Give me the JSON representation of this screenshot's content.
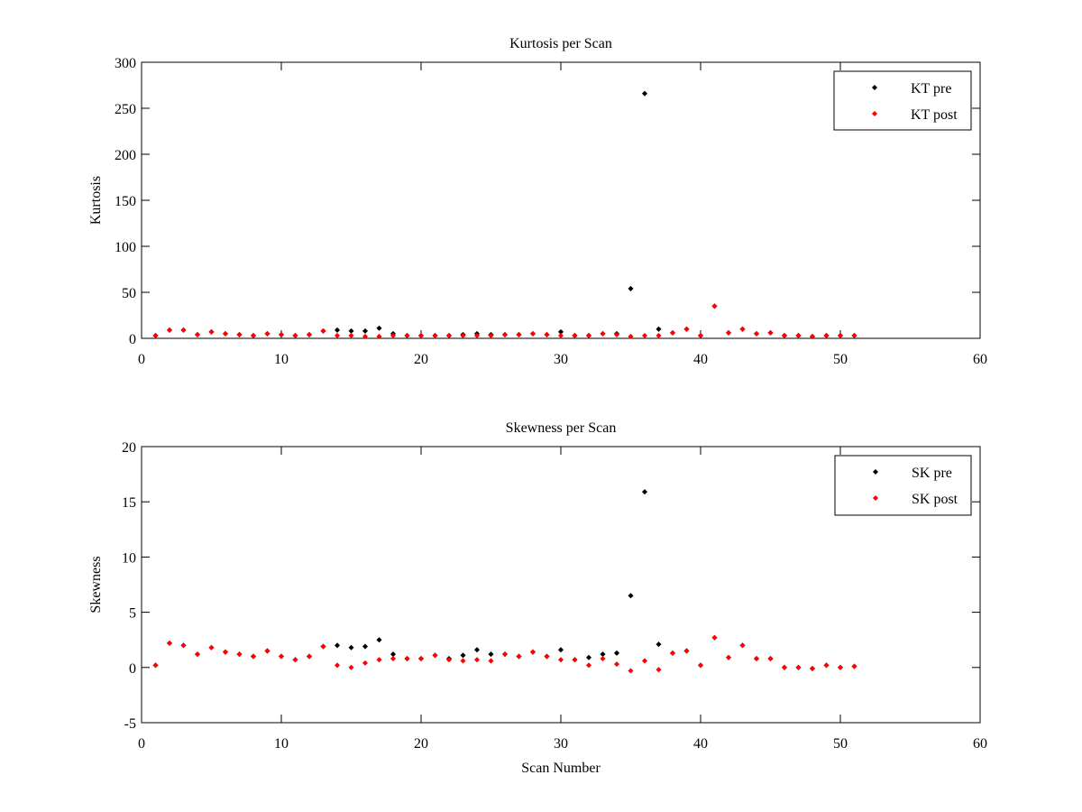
{
  "chart_data": [
    {
      "type": "scatter",
      "title": "Kurtosis per Scan",
      "xlabel": "",
      "ylabel": "Kurtosis",
      "xlim": [
        0,
        60
      ],
      "ylim": [
        0,
        300
      ],
      "xticks": [
        0,
        10,
        20,
        30,
        40,
        50,
        60
      ],
      "yticks": [
        0,
        50,
        100,
        150,
        200,
        250,
        300
      ],
      "grid": false,
      "legend_position": "top-right",
      "series": [
        {
          "name": "KT pre",
          "color": "#000000",
          "x": [
            1,
            2,
            3,
            4,
            5,
            6,
            7,
            8,
            9,
            10,
            11,
            12,
            13,
            14,
            15,
            16,
            17,
            18,
            19,
            20,
            21,
            22,
            23,
            24,
            25,
            26,
            27,
            28,
            29,
            30,
            31,
            32,
            33,
            34,
            35,
            36,
            37,
            38,
            39,
            40,
            41,
            42,
            43,
            44,
            45,
            46,
            47,
            48,
            49,
            50,
            51
          ],
          "y": [
            3,
            9,
            9,
            4,
            7,
            5,
            4,
            3,
            5,
            4,
            3,
            4,
            8,
            9,
            8,
            8,
            11,
            5,
            3,
            3,
            3,
            3,
            4,
            5,
            4,
            4,
            4,
            5,
            4,
            7,
            3,
            3,
            5,
            5,
            54,
            266,
            10,
            6,
            10,
            3,
            35,
            6,
            10,
            5,
            6,
            3,
            3,
            2,
            3,
            3,
            3
          ]
        },
        {
          "name": "KT post",
          "color": "#ff0000",
          "x": [
            1,
            2,
            3,
            4,
            5,
            6,
            7,
            8,
            9,
            10,
            11,
            12,
            13,
            14,
            15,
            16,
            17,
            18,
            19,
            20,
            21,
            22,
            23,
            24,
            25,
            26,
            27,
            28,
            29,
            30,
            31,
            32,
            33,
            34,
            35,
            36,
            37,
            38,
            39,
            40,
            41,
            42,
            43,
            44,
            45,
            46,
            47,
            48,
            49,
            50,
            51
          ],
          "y": [
            3,
            9,
            9,
            4,
            7,
            5,
            4,
            3,
            5,
            4,
            3,
            4,
            8,
            3,
            3,
            2,
            2,
            3,
            3,
            3,
            3,
            3,
            3,
            3,
            3,
            4,
            4,
            5,
            4,
            3,
            3,
            3,
            5,
            4,
            2,
            3,
            3,
            6,
            10,
            3,
            35,
            6,
            10,
            5,
            6,
            3,
            3,
            2,
            3,
            3,
            3
          ]
        }
      ]
    },
    {
      "type": "scatter",
      "title": "Skewness per Scan",
      "xlabel": "Scan Number",
      "ylabel": "Skewness",
      "xlim": [
        0,
        60
      ],
      "ylim": [
        -5,
        20
      ],
      "xticks": [
        0,
        10,
        20,
        30,
        40,
        50,
        60
      ],
      "yticks": [
        -5,
        0,
        5,
        10,
        15,
        20
      ],
      "grid": false,
      "legend_position": "top-right",
      "series": [
        {
          "name": "SK pre",
          "color": "#000000",
          "x": [
            1,
            2,
            3,
            4,
            5,
            6,
            7,
            8,
            9,
            10,
            11,
            12,
            13,
            14,
            15,
            16,
            17,
            18,
            19,
            20,
            21,
            22,
            23,
            24,
            25,
            26,
            27,
            28,
            29,
            30,
            31,
            32,
            33,
            34,
            35,
            36,
            37,
            38,
            39,
            40,
            41,
            42,
            43,
            44,
            45,
            46,
            47,
            48,
            49,
            50,
            51
          ],
          "y": [
            0.2,
            2.2,
            2.0,
            1.2,
            1.8,
            1.4,
            1.2,
            1.0,
            1.5,
            1.0,
            0.7,
            1.0,
            1.9,
            2.0,
            1.8,
            1.9,
            2.5,
            1.2,
            0.8,
            0.8,
            1.1,
            0.8,
            1.1,
            1.6,
            1.2,
            1.2,
            1.0,
            1.4,
            1.0,
            1.6,
            0.7,
            0.9,
            1.2,
            1.3,
            6.5,
            15.9,
            2.1,
            1.3,
            1.5,
            0.2,
            2.7,
            0.9,
            2.0,
            0.8,
            0.8,
            0.0,
            0.0,
            -0.1,
            0.2,
            0.0,
            0.1
          ]
        },
        {
          "name": "SK post",
          "color": "#ff0000",
          "x": [
            1,
            2,
            3,
            4,
            5,
            6,
            7,
            8,
            9,
            10,
            11,
            12,
            13,
            14,
            15,
            16,
            17,
            18,
            19,
            20,
            21,
            22,
            23,
            24,
            25,
            26,
            27,
            28,
            29,
            30,
            31,
            32,
            33,
            34,
            35,
            36,
            37,
            38,
            39,
            40,
            41,
            42,
            43,
            44,
            45,
            46,
            47,
            48,
            49,
            50,
            51
          ],
          "y": [
            0.2,
            2.2,
            2.0,
            1.2,
            1.8,
            1.4,
            1.2,
            1.0,
            1.5,
            1.0,
            0.7,
            1.0,
            1.9,
            0.2,
            0.0,
            0.4,
            0.7,
            0.8,
            0.8,
            0.8,
            1.1,
            0.7,
            0.6,
            0.7,
            0.6,
            1.2,
            1.0,
            1.4,
            1.0,
            0.7,
            0.7,
            0.2,
            0.8,
            0.3,
            -0.3,
            0.6,
            -0.2,
            1.3,
            1.5,
            0.2,
            2.7,
            0.9,
            2.0,
            0.8,
            0.8,
            0.0,
            0.0,
            -0.1,
            0.2,
            0.0,
            0.1
          ]
        }
      ]
    }
  ]
}
